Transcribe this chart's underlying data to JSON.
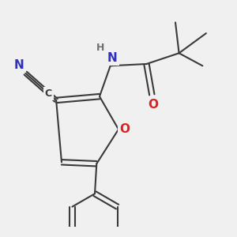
{
  "bg_color": "#f0f0f0",
  "bond_color": "#3a3a3a",
  "bond_width": 1.5,
  "atom_colors": {
    "C": "#3a3a3a",
    "N": "#3030c0",
    "O": "#dd2020",
    "H": "#707070"
  },
  "fig_size": [
    3.0,
    3.0
  ],
  "dpi": 100
}
